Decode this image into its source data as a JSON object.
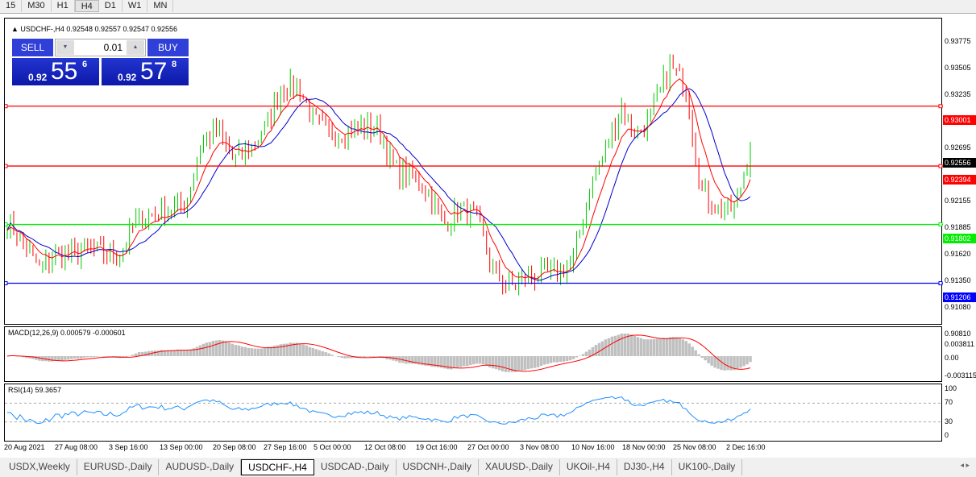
{
  "timeframes": [
    "15",
    "M30",
    "H1",
    "H4",
    "D1",
    "W1",
    "MN"
  ],
  "active_timeframe": "H4",
  "chart": {
    "header": "USDCHF-,H4  0.92548 0.92557 0.92547 0.92556",
    "header_icon": "triangle-up-icon"
  },
  "trade_panel": {
    "sell_label": "SELL",
    "buy_label": "BUY",
    "lot": "0.01",
    "sell_small": "0.92",
    "sell_big": "55",
    "sell_pip": "6",
    "buy_small": "0.92",
    "buy_big": "57",
    "buy_pip": "8"
  },
  "price_axis": {
    "ticks": [
      "0.93775",
      "0.93505",
      "0.93235",
      "0.92695",
      "0.92155",
      "0.91885",
      "0.91620",
      "0.91350",
      "0.91080",
      "0.90810"
    ],
    "range": [
      0.9081,
      0.93775
    ]
  },
  "lines": [
    {
      "price": "0.93001",
      "color": "#ff0000"
    },
    {
      "price": "0.92394",
      "color": "#ff0000"
    },
    {
      "price": "0.91802",
      "color": "#00ee00"
    },
    {
      "price": "0.91206",
      "color": "#0000ff"
    }
  ],
  "current_price": {
    "label": "0.92556",
    "color": "#000000"
  },
  "approx_close_path": [
    0.9185,
    0.916,
    0.9135,
    0.915,
    0.915,
    0.9155,
    0.915,
    0.9148,
    0.9185,
    0.919,
    0.9195,
    0.92,
    0.926,
    0.9275,
    0.9245,
    0.9255,
    0.928,
    0.932,
    0.932,
    0.9285,
    0.927,
    0.9275,
    0.928,
    0.9275,
    0.9235,
    0.923,
    0.9215,
    0.918,
    0.9195,
    0.919,
    0.9135,
    0.9115,
    0.9125,
    0.913,
    0.913,
    0.914,
    0.9215,
    0.9255,
    0.93,
    0.927,
    0.9295,
    0.934,
    0.932,
    0.9215,
    0.9195,
    0.9195,
    0.9256
  ],
  "macd": {
    "label": "MACD(12,26,9) 0.000579 -0.000601",
    "ticks": [
      "0.003811",
      "0.00",
      "-0.003115"
    ]
  },
  "rsi": {
    "label": "RSI(14) 59.3657",
    "ticks": [
      "100",
      "70",
      "30",
      "0"
    ]
  },
  "dates": [
    "20 Aug 2021",
    "27 Aug 08:00",
    "3 Sep 16:00",
    "13 Sep 00:00",
    "20 Sep 08:00",
    "27 Sep 16:00",
    "5 Oct 00:00",
    "12 Oct 08:00",
    "19 Oct 16:00",
    "27 Oct 00:00",
    "3 Nov 08:00",
    "10 Nov 16:00",
    "18 Nov 00:00",
    "25 Nov 08:00",
    "2 Dec 16:00"
  ],
  "tabs": [
    "USDX,Weekly",
    "EURUSD-,Daily",
    "AUDUSD-,Daily",
    "USDCHF-,H4",
    "USDCAD-,Daily",
    "USDCNH-,Daily",
    "XAUUSD-,Daily",
    "UKOil-,H4",
    "DJ30-,H4",
    "UK100-,Daily"
  ],
  "active_tab": "USDCHF-,H4",
  "colors": {
    "bull": "#00cc00",
    "bear": "#ff0000",
    "ma_fast": "#ff0000",
    "ma_slow": "#0000cc",
    "macd_hist": "#c0c0c0",
    "rsi": "#1e90ff"
  }
}
